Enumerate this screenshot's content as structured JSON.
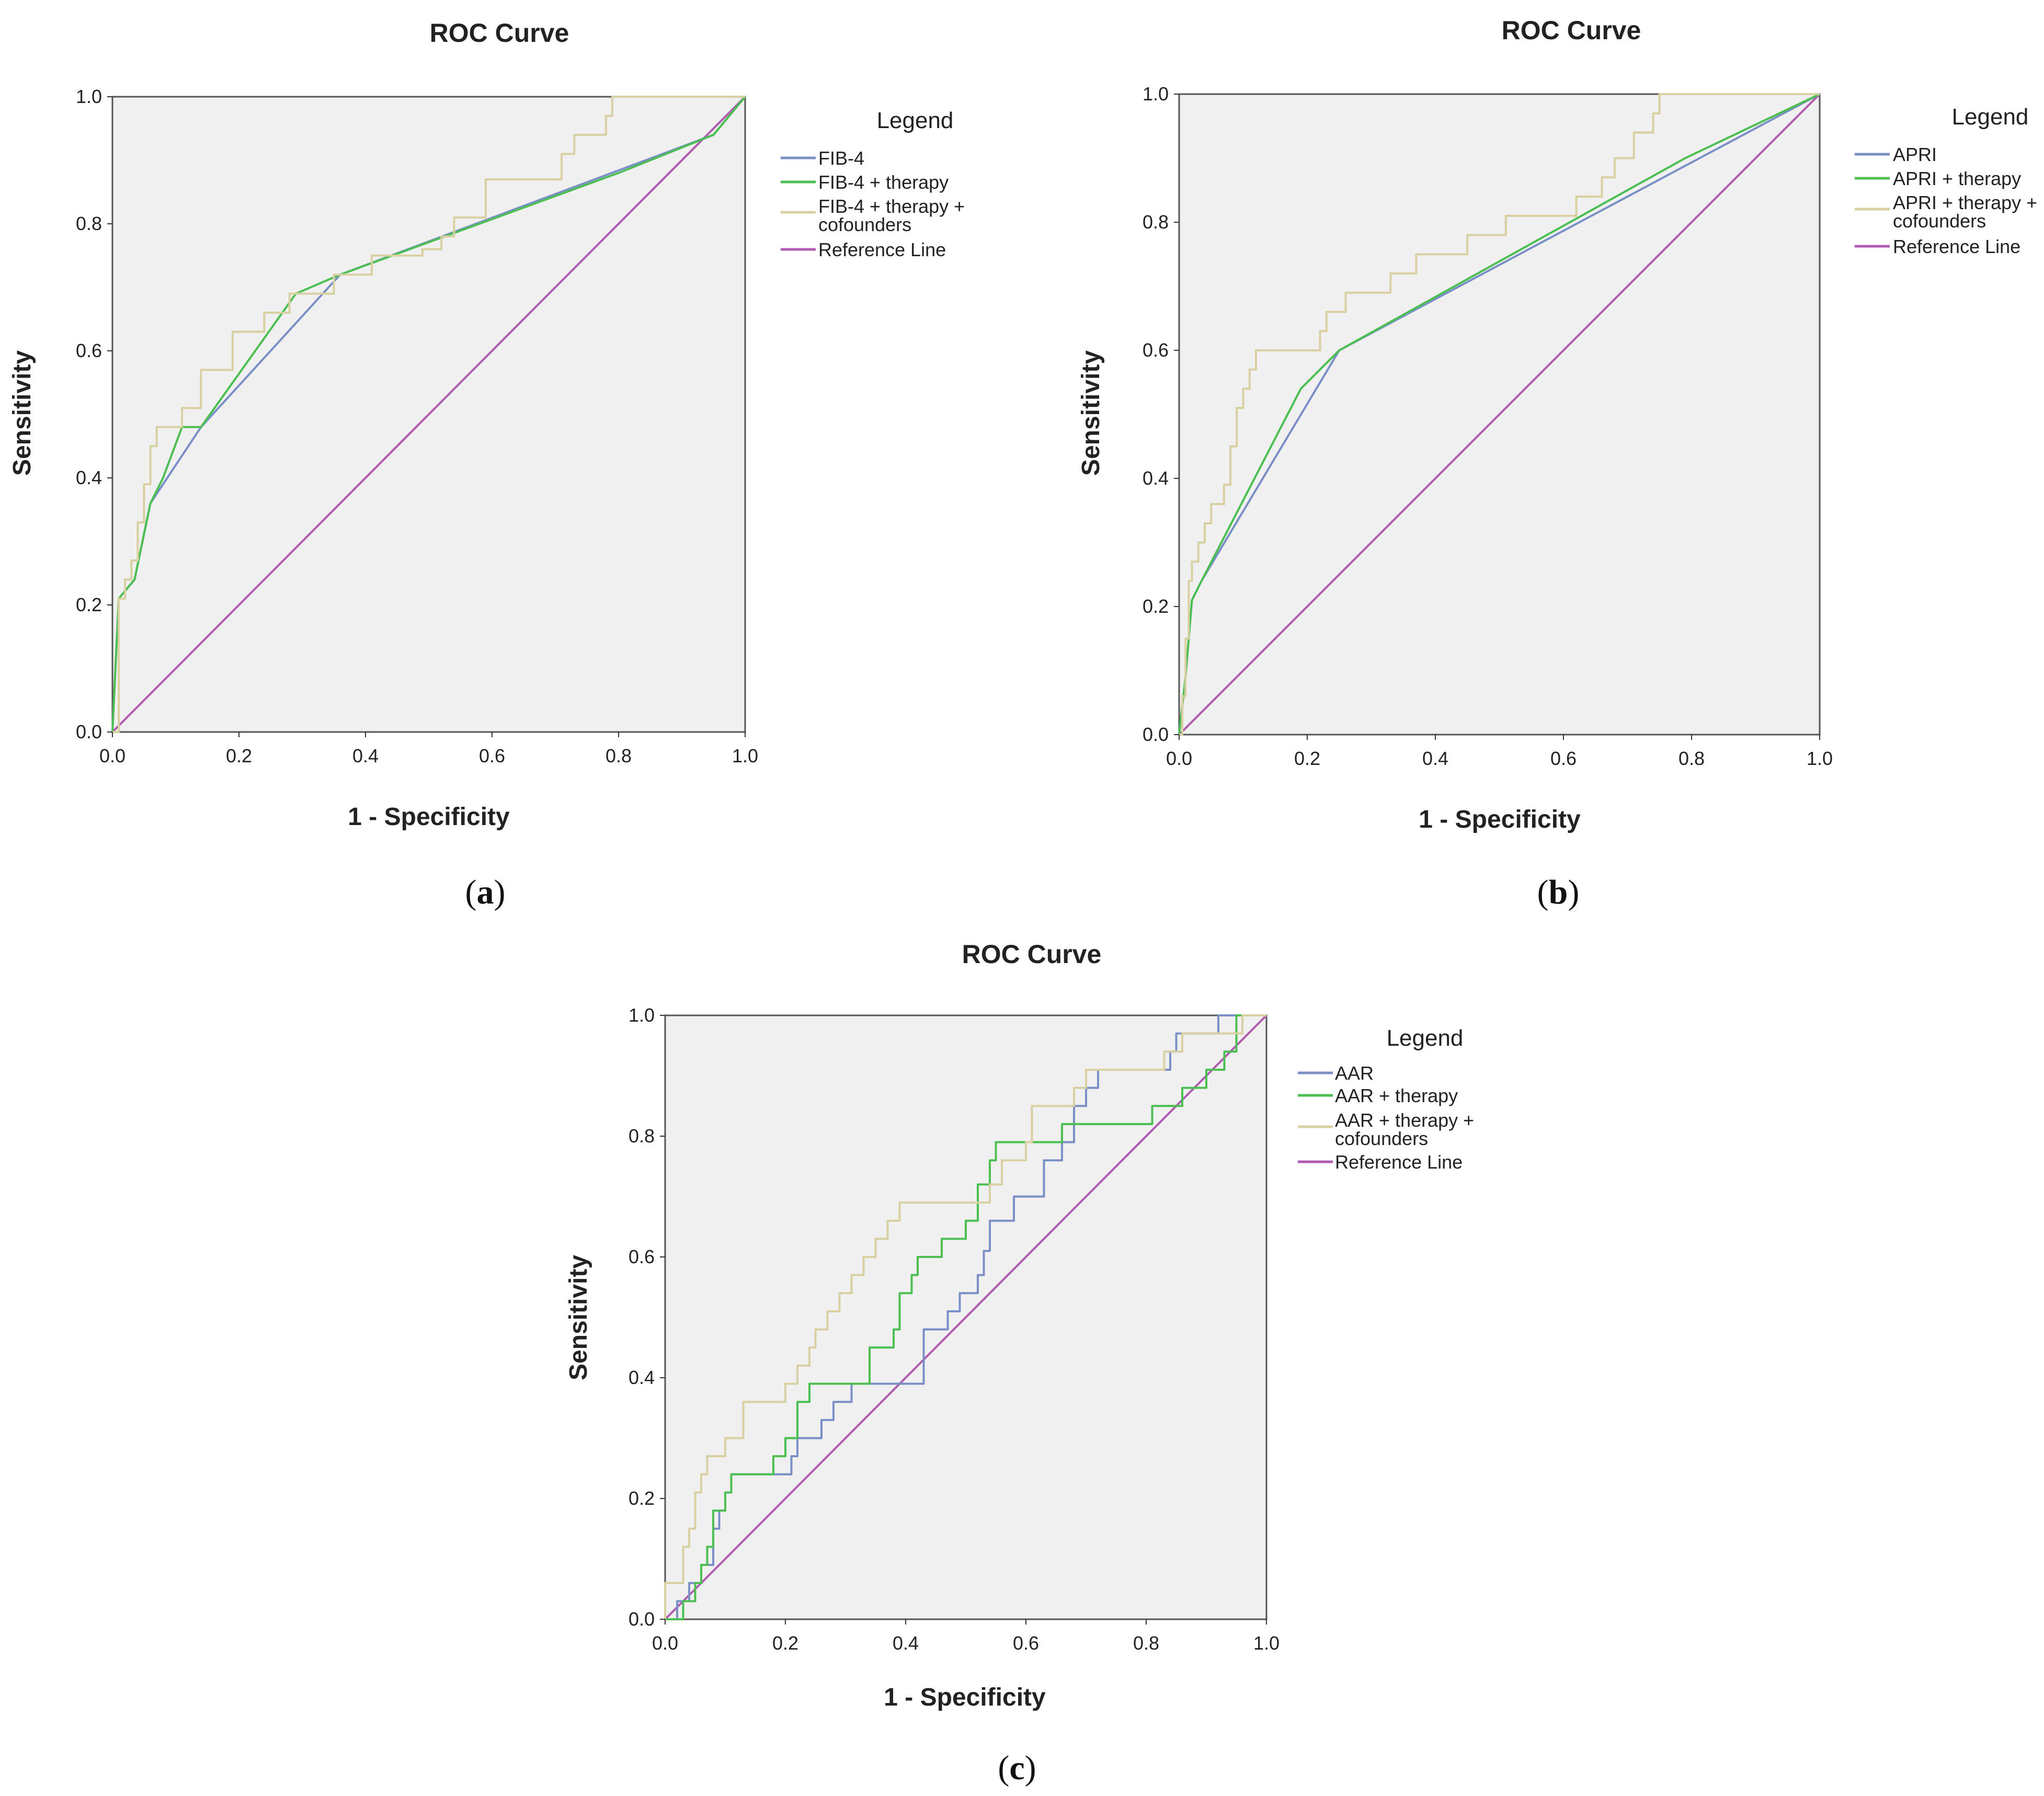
{
  "chart_data": [
    {
      "type": "line",
      "panel": "a",
      "title": "ROC Curve",
      "xlabel": "1 - Specificity",
      "ylabel": "Sensitivity",
      "xlim": [
        0,
        1
      ],
      "ylim": [
        0,
        1
      ],
      "xticks": [
        "0.0",
        "0.2",
        "0.4",
        "0.6",
        "0.8",
        "1.0"
      ],
      "yticks": [
        "0.0",
        "0.2",
        "0.4",
        "0.6",
        "0.8",
        "1.0"
      ],
      "grid": false,
      "legend": {
        "title": "Legend",
        "position": "right"
      },
      "series": [
        {
          "name": "FIB-4",
          "color": "#7a8fc6",
          "points": [
            [
              0,
              0
            ],
            [
              0.01,
              0.21
            ],
            [
              0.035,
              0.24
            ],
            [
              0.06,
              0.36
            ],
            [
              0.14,
              0.48
            ],
            [
              0.36,
              0.72
            ],
            [
              0.95,
              0.94
            ],
            [
              1,
              1
            ]
          ]
        },
        {
          "name": "FIB-4 + therapy",
          "color": "#4cbf53",
          "points": [
            [
              0,
              0
            ],
            [
              0.01,
              0.21
            ],
            [
              0.035,
              0.24
            ],
            [
              0.06,
              0.36
            ],
            [
              0.08,
              0.4
            ],
            [
              0.11,
              0.48
            ],
            [
              0.14,
              0.48
            ],
            [
              0.29,
              0.69
            ],
            [
              0.36,
              0.72
            ],
            [
              0.8,
              0.88
            ],
            [
              0.95,
              0.94
            ],
            [
              1,
              1
            ]
          ]
        },
        {
          "name": "FIB-4 + therapy + cofounders",
          "color": "#d8d0a0",
          "step": true,
          "points": [
            [
              0,
              0
            ],
            [
              0.01,
              0.03
            ],
            [
              0.01,
              0.21
            ],
            [
              0.02,
              0.24
            ],
            [
              0.03,
              0.27
            ],
            [
              0.04,
              0.33
            ],
            [
              0.05,
              0.39
            ],
            [
              0.06,
              0.45
            ],
            [
              0.07,
              0.48
            ],
            [
              0.1,
              0.48
            ],
            [
              0.11,
              0.51
            ],
            [
              0.14,
              0.57
            ],
            [
              0.19,
              0.63
            ],
            [
              0.24,
              0.66
            ],
            [
              0.28,
              0.69
            ],
            [
              0.35,
              0.72
            ],
            [
              0.41,
              0.75
            ],
            [
              0.49,
              0.76
            ],
            [
              0.52,
              0.78
            ],
            [
              0.54,
              0.81
            ],
            [
              0.59,
              0.87
            ],
            [
              0.7,
              0.87
            ],
            [
              0.71,
              0.91
            ],
            [
              0.73,
              0.94
            ],
            [
              0.78,
              0.97
            ],
            [
              0.79,
              1.0
            ],
            [
              1,
              1
            ]
          ]
        },
        {
          "name": "Reference Line",
          "color": "#b05bb0",
          "points": [
            [
              0,
              0
            ],
            [
              1,
              1
            ]
          ]
        }
      ]
    },
    {
      "type": "line",
      "panel": "b",
      "title": "ROC Curve",
      "xlabel": "1 - Specificity",
      "ylabel": "Sensitivity",
      "xlim": [
        0,
        1
      ],
      "ylim": [
        0,
        1
      ],
      "xticks": [
        "0.0",
        "0.2",
        "0.4",
        "0.6",
        "0.8",
        "1.0"
      ],
      "yticks": [
        "0.0",
        "0.2",
        "0.4",
        "0.6",
        "0.8",
        "1.0"
      ],
      "grid": false,
      "legend": {
        "title": "Legend",
        "position": "right"
      },
      "series": [
        {
          "name": "APRI",
          "color": "#7a8fc6",
          "points": [
            [
              0,
              0
            ],
            [
              0.01,
              0.09
            ],
            [
              0.02,
              0.21
            ],
            [
              0.035,
              0.24
            ],
            [
              0.25,
              0.6
            ],
            [
              1,
              1
            ]
          ]
        },
        {
          "name": "APRI + therapy",
          "color": "#4cbf53",
          "points": [
            [
              0,
              0
            ],
            [
              0.01,
              0.09
            ],
            [
              0.02,
              0.21
            ],
            [
              0.035,
              0.24
            ],
            [
              0.19,
              0.54
            ],
            [
              0.25,
              0.6
            ],
            [
              0.79,
              0.9
            ],
            [
              1,
              1
            ]
          ]
        },
        {
          "name": "APRI + therapy + cofounders",
          "color": "#d8d0a0",
          "step": true,
          "points": [
            [
              0,
              0
            ],
            [
              0.005,
              0.06
            ],
            [
              0.01,
              0.15
            ],
            [
              0.015,
              0.24
            ],
            [
              0.02,
              0.27
            ],
            [
              0.03,
              0.3
            ],
            [
              0.04,
              0.33
            ],
            [
              0.05,
              0.36
            ],
            [
              0.07,
              0.39
            ],
            [
              0.08,
              0.45
            ],
            [
              0.09,
              0.51
            ],
            [
              0.1,
              0.54
            ],
            [
              0.11,
              0.57
            ],
            [
              0.12,
              0.6
            ],
            [
              0.22,
              0.63
            ],
            [
              0.23,
              0.66
            ],
            [
              0.26,
              0.69
            ],
            [
              0.33,
              0.72
            ],
            [
              0.37,
              0.75
            ],
            [
              0.45,
              0.78
            ],
            [
              0.51,
              0.81
            ],
            [
              0.62,
              0.84
            ],
            [
              0.66,
              0.87
            ],
            [
              0.68,
              0.9
            ],
            [
              0.71,
              0.94
            ],
            [
              0.74,
              0.97
            ],
            [
              0.75,
              1.0
            ],
            [
              1,
              1
            ]
          ]
        },
        {
          "name": "Reference Line",
          "color": "#b05bb0",
          "points": [
            [
              0,
              0
            ],
            [
              1,
              1
            ]
          ]
        }
      ]
    },
    {
      "type": "line",
      "panel": "c",
      "title": "ROC Curve",
      "xlabel": "1 - Specificity",
      "ylabel": "Sensitivity",
      "xlim": [
        0,
        1
      ],
      "ylim": [
        0,
        1
      ],
      "xticks": [
        "0.0",
        "0.2",
        "0.4",
        "0.6",
        "0.8",
        "1.0"
      ],
      "yticks": [
        "0.0",
        "0.2",
        "0.4",
        "0.6",
        "0.8",
        "1.0"
      ],
      "grid": false,
      "legend": {
        "title": "Legend",
        "position": "right"
      },
      "series": [
        {
          "name": "AAR",
          "color": "#7a8fc6",
          "step": true,
          "points": [
            [
              0.02,
              0
            ],
            [
              0.02,
              0.03
            ],
            [
              0.04,
              0.06
            ],
            [
              0.06,
              0.09
            ],
            [
              0.08,
              0.15
            ],
            [
              0.09,
              0.18
            ],
            [
              0.1,
              0.21
            ],
            [
              0.11,
              0.24
            ],
            [
              0.21,
              0.27
            ],
            [
              0.22,
              0.3
            ],
            [
              0.26,
              0.33
            ],
            [
              0.28,
              0.36
            ],
            [
              0.31,
              0.39
            ],
            [
              0.39,
              0.39
            ],
            [
              0.43,
              0.48
            ],
            [
              0.47,
              0.51
            ],
            [
              0.49,
              0.54
            ],
            [
              0.52,
              0.57
            ],
            [
              0.53,
              0.61
            ],
            [
              0.54,
              0.66
            ],
            [
              0.58,
              0.7
            ],
            [
              0.63,
              0.76
            ],
            [
              0.66,
              0.79
            ],
            [
              0.68,
              0.85
            ],
            [
              0.7,
              0.88
            ],
            [
              0.72,
              0.91
            ],
            [
              0.84,
              0.94
            ],
            [
              0.85,
              0.97
            ],
            [
              0.92,
              1.0
            ],
            [
              1,
              1
            ]
          ]
        },
        {
          "name": "AAR + therapy",
          "color": "#4cbf53",
          "step": true,
          "points": [
            [
              0,
              0
            ],
            [
              0.03,
              0.03
            ],
            [
              0.05,
              0.06
            ],
            [
              0.06,
              0.09
            ],
            [
              0.07,
              0.12
            ],
            [
              0.08,
              0.18
            ],
            [
              0.1,
              0.21
            ],
            [
              0.11,
              0.24
            ],
            [
              0.18,
              0.27
            ],
            [
              0.2,
              0.3
            ],
            [
              0.22,
              0.36
            ],
            [
              0.24,
              0.39
            ],
            [
              0.31,
              0.39
            ],
            [
              0.34,
              0.45
            ],
            [
              0.38,
              0.48
            ],
            [
              0.39,
              0.54
            ],
            [
              0.41,
              0.57
            ],
            [
              0.42,
              0.6
            ],
            [
              0.46,
              0.63
            ],
            [
              0.5,
              0.66
            ],
            [
              0.52,
              0.72
            ],
            [
              0.54,
              0.76
            ],
            [
              0.55,
              0.79
            ],
            [
              0.66,
              0.82
            ],
            [
              0.81,
              0.85
            ],
            [
              0.86,
              0.88
            ],
            [
              0.9,
              0.91
            ],
            [
              0.93,
              0.94
            ],
            [
              0.95,
              0.97
            ],
            [
              0.95,
              1.0
            ],
            [
              1,
              1
            ]
          ]
        },
        {
          "name": "AAR + therapy + cofounders",
          "color": "#d8d0a0",
          "step": true,
          "points": [
            [
              0,
              0
            ],
            [
              0,
              0.06
            ],
            [
              0.03,
              0.12
            ],
            [
              0.04,
              0.15
            ],
            [
              0.05,
              0.21
            ],
            [
              0.06,
              0.24
            ],
            [
              0.07,
              0.27
            ],
            [
              0.1,
              0.3
            ],
            [
              0.13,
              0.36
            ],
            [
              0.2,
              0.39
            ],
            [
              0.22,
              0.42
            ],
            [
              0.24,
              0.45
            ],
            [
              0.25,
              0.48
            ],
            [
              0.27,
              0.51
            ],
            [
              0.29,
              0.54
            ],
            [
              0.31,
              0.57
            ],
            [
              0.33,
              0.6
            ],
            [
              0.35,
              0.63
            ],
            [
              0.37,
              0.66
            ],
            [
              0.39,
              0.69
            ],
            [
              0.52,
              0.69
            ],
            [
              0.54,
              0.72
            ],
            [
              0.56,
              0.76
            ],
            [
              0.6,
              0.79
            ],
            [
              0.61,
              0.85
            ],
            [
              0.68,
              0.88
            ],
            [
              0.7,
              0.91
            ],
            [
              0.83,
              0.94
            ],
            [
              0.86,
              0.97
            ],
            [
              0.96,
              1.0
            ],
            [
              1,
              1
            ]
          ]
        },
        {
          "name": "Reference Line",
          "color": "#b05bb0",
          "points": [
            [
              0,
              0
            ],
            [
              1,
              1
            ]
          ]
        }
      ]
    }
  ],
  "panels": {
    "a": {
      "label_prefix": "(",
      "label_letter": "a",
      "label_suffix": ")"
    },
    "b": {
      "label_prefix": "(",
      "label_letter": "b",
      "label_suffix": ")"
    },
    "c": {
      "label_prefix": "(",
      "label_letter": "c",
      "label_suffix": ")"
    }
  },
  "legend_labels": {
    "a": [
      "FIB-4",
      "FIB-4 + therapy",
      "FIB-4 + therapy +",
      "cofounders",
      "Reference Line"
    ],
    "b": [
      "APRI",
      "APRI + therapy",
      "APRI + therapy +",
      "cofounders",
      "Reference Line"
    ],
    "c": [
      "AAR",
      "AAR + therapy",
      "AAR + therapy +",
      "cofounders",
      "Reference Line"
    ]
  },
  "colors": {
    "plot_background": "#f0f0f0",
    "axis_frame": "#555555"
  }
}
